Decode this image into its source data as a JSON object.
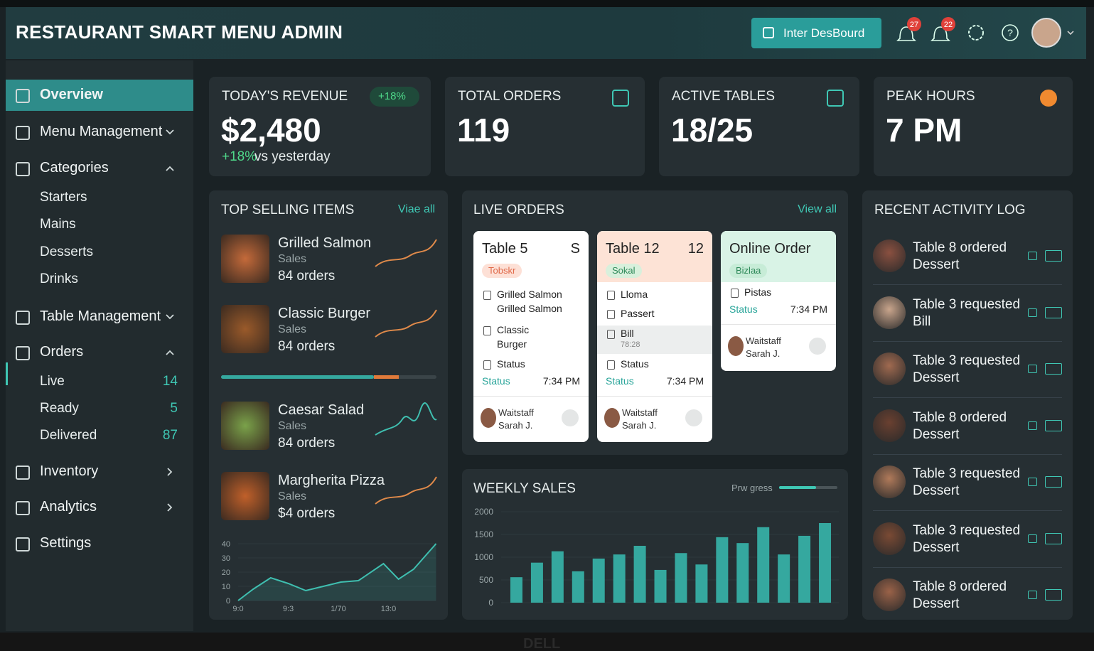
{
  "header": {
    "title": "RESTAURANT SMART MENU ADMIN",
    "button": "Inter DesBourd",
    "badges": [
      "27",
      "22"
    ]
  },
  "sidebar": {
    "items": [
      {
        "label": "Overview"
      },
      {
        "label": "Menu Management"
      },
      {
        "label": "Categories",
        "children": [
          {
            "label": "Starters"
          },
          {
            "label": "Mains"
          },
          {
            "label": "Desserts"
          },
          {
            "label": "Drinks"
          }
        ]
      },
      {
        "label": "Table Management"
      },
      {
        "label": "Orders",
        "children": [
          {
            "label": "Live",
            "count": 14
          },
          {
            "label": "Ready",
            "count": 5
          },
          {
            "label": "Delivered",
            "count": 87
          }
        ]
      },
      {
        "label": "Inventory"
      },
      {
        "label": "Analytics"
      },
      {
        "label": "Settings"
      }
    ]
  },
  "kpis": [
    {
      "title": "TODAY'S REVENUE",
      "value": "$2,480",
      "badge": "+18%",
      "change": "+18%",
      "note": "vs yesterday"
    },
    {
      "title": "TOTAL ORDERS",
      "value": "119"
    },
    {
      "title": "ACTIVE TABLES",
      "value": "18/25"
    },
    {
      "title": "PEAK HOURS",
      "value": "7 PM"
    }
  ],
  "top_selling": {
    "title": "TOP SELLING ITEMS",
    "link": "Viae all",
    "items": [
      {
        "name": "Grilled Salmon",
        "label": "Sales",
        "orders": "84 orders"
      },
      {
        "name": "Classic Burger",
        "label": "Sales",
        "orders": "84 orders"
      },
      {
        "name": "Caesar Salad",
        "label": "Sales",
        "orders": "84 orders"
      },
      {
        "name": "Margherita Pizza",
        "label": "Sales",
        "orders": "$4 orders"
      }
    ],
    "chart_data": {
      "type": "line",
      "color": "#3fbfb0",
      "x": [
        0,
        0.3,
        0.65,
        1.0,
        1.35,
        1.7,
        2.05,
        2.4,
        2.9,
        3.2,
        3.5,
        3.95
      ],
      "values": [
        0,
        8,
        16,
        12,
        7,
        10,
        13,
        14,
        26,
        15,
        22,
        40
      ],
      "xlim": [
        0,
        4
      ],
      "xticks": [
        {
          "value": 0,
          "label": "9:0"
        },
        {
          "value": 1,
          "label": "9:3"
        },
        {
          "value": 2,
          "label": "1/70"
        },
        {
          "value": 3,
          "label": "13:0"
        }
      ],
      "ylim": [
        0,
        40
      ],
      "yticks": [
        0,
        10,
        20,
        30,
        40
      ]
    }
  },
  "live_orders": {
    "title": "LIVE ORDERS",
    "link": "View all",
    "cards": [
      {
        "title": "Table 5",
        "corner": "S",
        "tag": "Tobskr",
        "items": [
          {
            "lines": [
              "Grilled Salmon",
              "Grilled Salmon"
            ]
          },
          {
            "lines": [
              "Classic",
              "Burger"
            ]
          },
          {
            "lines": [
              "Status"
            ]
          }
        ],
        "status": "Status",
        "time": "7:34 PM",
        "staff_label": "Waitstaff",
        "staff_name": "Sarah J."
      },
      {
        "title": "Table 12",
        "corner": "12",
        "tag": "Sokal",
        "items": [
          {
            "lines": [
              "Lloma"
            ]
          },
          {
            "lines": [
              "Passert"
            ]
          },
          {
            "lines": [
              "Bill",
              "78:28"
            ]
          },
          {
            "lines": [
              "Status"
            ]
          }
        ],
        "status": "Status",
        "time": "7:34 PM",
        "staff_label": "Waitstaff",
        "staff_name": "Sarah J."
      },
      {
        "title": "Online Order",
        "tag": "Bizlaa",
        "items": [
          {
            "lines": [
              "Pistas"
            ]
          }
        ],
        "status": "Status",
        "time": "7:34 PM",
        "staff_label": "Waitstaff",
        "staff_name": "Sarah J."
      }
    ]
  },
  "weekly_sales": {
    "title": "WEEKLY SALES",
    "legend": "Prw gress",
    "chart_data": {
      "type": "bar",
      "color": "#35a89f",
      "values": [
        560,
        880,
        1130,
        690,
        970,
        1060,
        1250,
        720,
        1090,
        840,
        1440,
        1310,
        1660,
        1060,
        1470,
        1750
      ],
      "ylim": [
        0,
        2000
      ],
      "yticks": [
        0,
        500,
        1000,
        1500,
        2000
      ]
    }
  },
  "activity": {
    "title": "RECENT ACTIVITY LOG",
    "entries": [
      [
        "Table 8 ordered",
        "Dessert"
      ],
      [
        "Table 3 requested",
        "Bill"
      ],
      [
        "Table 3 requested",
        "Dessert"
      ],
      [
        "Table 8 ordered",
        "Dessert"
      ],
      [
        "Table 3 requested",
        "Dessert"
      ],
      [
        "Table 3 requested",
        "Dessert"
      ],
      [
        "Table 8 ordered",
        "Dessert"
      ]
    ]
  },
  "footer": {
    "brand": "DELL"
  }
}
